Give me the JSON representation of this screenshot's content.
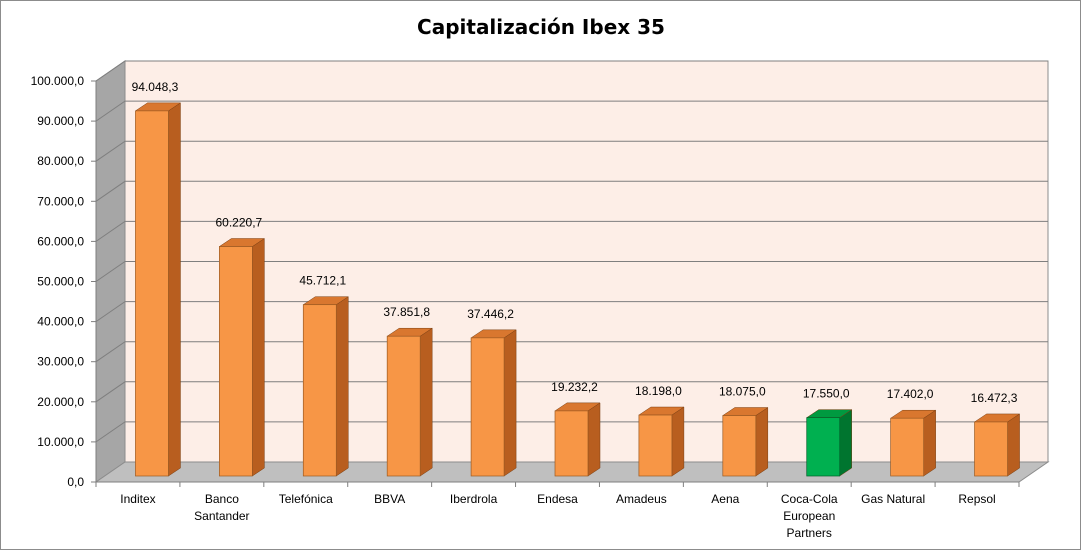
{
  "chart_data": {
    "type": "bar",
    "title": "Capitalización Ibex 35",
    "xlabel": "",
    "ylabel": "",
    "ylim": [
      0,
      100000
    ],
    "yticks": [
      "0,0",
      "10.000,0",
      "20.000,0",
      "30.000,0",
      "40.000,0",
      "50.000,0",
      "60.000,0",
      "70.000,0",
      "80.000,0",
      "90.000,0",
      "100.000,0"
    ],
    "ytick_values": [
      0,
      10000,
      20000,
      30000,
      40000,
      50000,
      60000,
      70000,
      80000,
      90000,
      100000
    ],
    "categories": [
      [
        "Inditex"
      ],
      [
        "Banco",
        "Santander"
      ],
      [
        "Telefónica"
      ],
      [
        "BBVA"
      ],
      [
        "Iberdrola"
      ],
      [
        "Endesa"
      ],
      [
        "Amadeus"
      ],
      [
        "Aena"
      ],
      [
        "Coca-Cola",
        "European",
        "Partners"
      ],
      [
        "Gas Natural"
      ],
      [
        "Repsol"
      ]
    ],
    "values": [
      94048.3,
      60220.7,
      45712.1,
      37851.8,
      37446.2,
      19232.2,
      18198.0,
      18075.0,
      17550.0,
      17402.0,
      16472.3
    ],
    "value_labels": [
      "94.048,3",
      "60.220,7",
      "45.712,1",
      "37.851,8",
      "37.446,2",
      "19.232,2",
      "18.198,0",
      "18.075,0",
      "17.550,0",
      "17.402,0",
      "16.472,3"
    ],
    "highlight_index": 8,
    "grid": true,
    "legend": "none",
    "colors": {
      "bar_front": "#F79646",
      "bar_side": "#B85E1F",
      "bar_top": "#D9772F",
      "highlight_front": "#00B050",
      "highlight_side": "#00752F",
      "highlight_top": "#009A40",
      "plot_back": "#FDEEE7",
      "wall_side": "#A6A6A6",
      "floor": "#BFBFBF",
      "gridline": "#7F7F7F"
    }
  }
}
